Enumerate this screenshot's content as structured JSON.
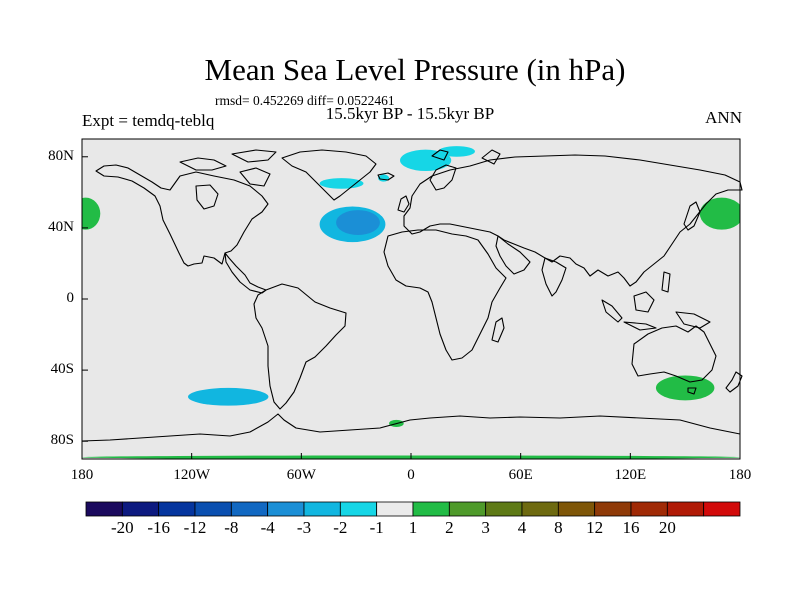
{
  "title": "Mean Sea Level Pressure (in hPa)",
  "stats": "rmsd= 0.452269  diff= 0.0522461",
  "subtitle": "15.5kyr BP - 15.5kyr BP",
  "expt_label": "Expt = temdq-teblq",
  "season": "ANN",
  "y_axis": {
    "labels": [
      "80N",
      "40N",
      "0",
      "40S",
      "80S"
    ],
    "values": [
      80,
      40,
      0,
      -40,
      -80
    ],
    "range": [
      -90,
      90
    ]
  },
  "x_axis": {
    "labels": [
      "180",
      "120W",
      "60W",
      "0",
      "60E",
      "120E",
      "180"
    ],
    "values": [
      -180,
      -120,
      -60,
      0,
      60,
      120,
      180
    ],
    "range": [
      -180,
      180
    ]
  },
  "colorbar": {
    "colors": [
      "#1b0a5e",
      "#0d1a80",
      "#05359e",
      "#0a4fb0",
      "#1168c2",
      "#1b8fd6",
      "#11b6e0",
      "#16d6e6",
      "#ebebeb",
      "#22bc46",
      "#4e9a2a",
      "#5e7a16",
      "#6e6a10",
      "#7e5608",
      "#8f3a08",
      "#a02a06",
      "#b01a06",
      "#d20a0a"
    ],
    "labels": [
      "-20",
      "-16",
      "-12",
      "-8",
      "-4",
      "-3",
      "-2",
      "-1",
      "1",
      "2",
      "3",
      "4",
      "8",
      "12",
      "16",
      "20"
    ]
  },
  "map": {
    "background_color": "#e8e8e8",
    "coast_color": "#000000",
    "anomalies": [
      {
        "name": "north-atlantic-low",
        "level": "-3",
        "color": "#11b6e0",
        "lon": -32,
        "lat": 42,
        "rx_deg": 18,
        "ry_deg": 10
      },
      {
        "name": "north-atlantic-low-core",
        "level": "-4",
        "color": "#1b8fd6",
        "lon": -29,
        "lat": 43,
        "rx_deg": 12,
        "ry_deg": 7
      },
      {
        "name": "greenland-low",
        "level": "-1",
        "color": "#16d6e6",
        "lon": -38,
        "lat": 65,
        "rx_deg": 12,
        "ry_deg": 3
      },
      {
        "name": "iceland-low",
        "level": "-1",
        "color": "#16d6e6",
        "lon": -15,
        "lat": 68,
        "rx_deg": 3,
        "ry_deg": 2
      },
      {
        "name": "barents-low",
        "level": "-1",
        "color": "#16d6e6",
        "lon": 8,
        "lat": 78,
        "rx_deg": 14,
        "ry_deg": 6
      },
      {
        "name": "svalbard-low",
        "level": "-1",
        "color": "#16d6e6",
        "lon": 25,
        "lat": 83,
        "rx_deg": 10,
        "ry_deg": 3
      },
      {
        "name": "south-pacific-low",
        "level": "-2",
        "color": "#11b6e0",
        "lon": -100,
        "lat": -55,
        "rx_deg": 22,
        "ry_deg": 5
      },
      {
        "name": "north-pacific-high-east",
        "level": "2",
        "color": "#22bc46",
        "lon": 170,
        "lat": 48,
        "rx_deg": 12,
        "ry_deg": 9
      },
      {
        "name": "north-pacific-high-west",
        "level": "2",
        "color": "#22bc46",
        "lon": -178,
        "lat": 48,
        "rx_deg": 8,
        "ry_deg": 9
      },
      {
        "name": "tasman-high",
        "level": "2",
        "color": "#22bc46",
        "lon": 150,
        "lat": -50,
        "rx_deg": 16,
        "ry_deg": 7
      },
      {
        "name": "antarctic-high",
        "level": "2",
        "color": "#22bc46",
        "lon": -8,
        "lat": -70,
        "rx_deg": 4,
        "ry_deg": 2
      },
      {
        "name": "antarctic-coast-high",
        "level": "2",
        "color": "#22bc46",
        "lon": 0,
        "lat": -89,
        "rx_deg": 180,
        "ry_deg": 1
      }
    ]
  }
}
